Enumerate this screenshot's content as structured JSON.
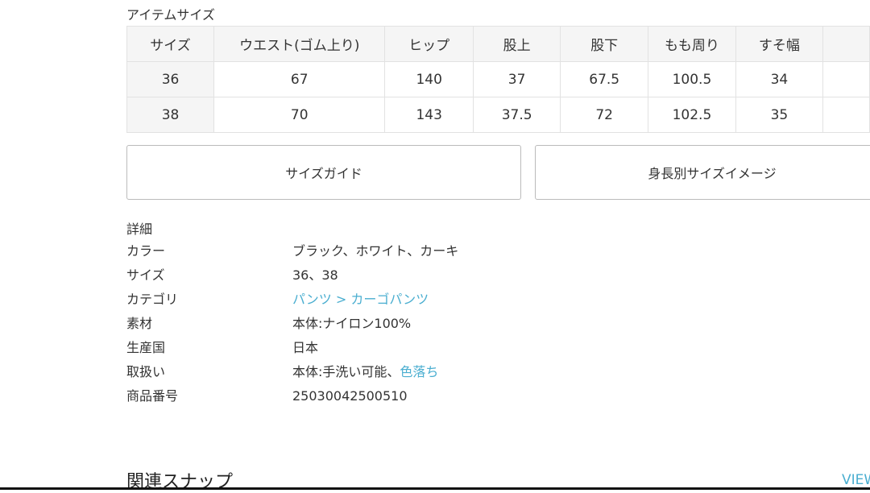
{
  "size_section": {
    "title": "アイテムサイズ",
    "headers": [
      "サイズ",
      "ウエスト(ゴム上り)",
      "ヒップ",
      "股上",
      "股下",
      "もも周り",
      "すそ幅",
      ""
    ],
    "rows": [
      [
        "36",
        "67",
        "140",
        "37",
        "67.5",
        "100.5",
        "34",
        ""
      ],
      [
        "38",
        "70",
        "143",
        "37.5",
        "72",
        "102.5",
        "35",
        ""
      ]
    ]
  },
  "buttons": {
    "size_guide": "サイズガイド",
    "height_image": "身長別サイズイメージ"
  },
  "details": {
    "title": "詳細",
    "color_label": "カラー",
    "color_value": "ブラック、ホワイト、カーキ",
    "size_label": "サイズ",
    "size_value": "36、38",
    "category_label": "カテゴリ",
    "category_link": "パンツ > カーゴパンツ",
    "material_label": "素材",
    "material_value": "本体:ナイロン100%",
    "origin_label": "生産国",
    "origin_value": "日本",
    "care_label": "取扱い",
    "care_value": "本体:手洗い可能、",
    "care_link": "色落ち",
    "product_no_label": "商品番号",
    "product_no_value": "25030042500510"
  },
  "related": {
    "title": "関連スナップ",
    "view_link": "VIEW"
  },
  "colors": {
    "link": "#4aaed0",
    "header_bg": "#f5f5f5"
  }
}
